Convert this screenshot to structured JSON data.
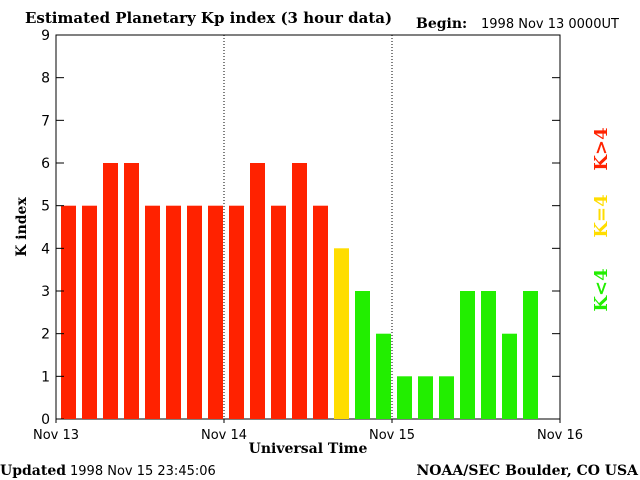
{
  "header": {
    "title": "Estimated Planetary Kp index (3 hour data)",
    "begin_label": "Begin:",
    "begin_value": "1998 Nov 13 0000UT"
  },
  "footer": {
    "updated_label": "Updated",
    "updated_value": "1998 Nov 15 23:45:06",
    "source": "NOAA/SEC Boulder, CO USA"
  },
  "legend": {
    "above": "K>4",
    "equal": "K=4",
    "below": "K<4"
  },
  "colors": {
    "above": "#ff2200",
    "equal": "#ffdd00",
    "below": "#22ee00",
    "axis": "#000000",
    "day_divider": "#000000"
  },
  "chart_data": {
    "type": "bar",
    "title": "Estimated Planetary Kp index (3 hour data)",
    "xlabel": "Universal Time",
    "ylabel": "K index",
    "ylim": [
      0,
      9
    ],
    "yticks": [
      0,
      1,
      2,
      3,
      4,
      5,
      6,
      7,
      8,
      9
    ],
    "xlim_slots": 24,
    "x_tick_labels": [
      "Nov 13",
      "Nov 14",
      "Nov 15",
      "Nov 16"
    ],
    "day_divider_slots": [
      8,
      16
    ],
    "values": [
      5,
      5,
      6,
      6,
      5,
      5,
      5,
      5,
      5,
      6,
      5,
      6,
      5,
      4,
      3,
      2,
      1,
      1,
      1,
      3,
      3,
      2,
      3
    ],
    "color_rule": "K>4 red, K=4 yellow, K<4 green"
  }
}
